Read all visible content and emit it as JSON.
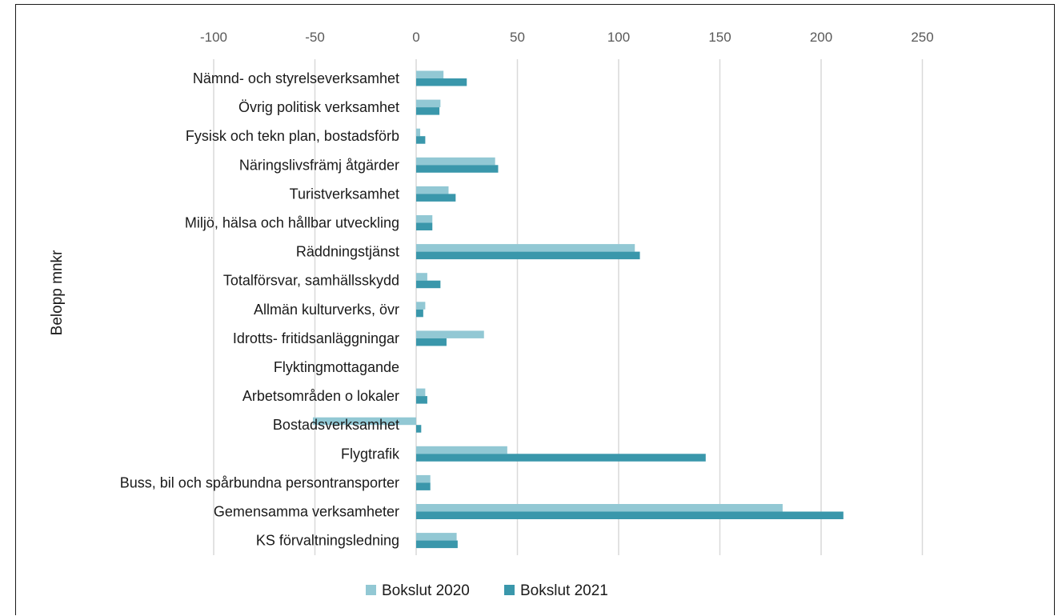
{
  "chart_data": {
    "type": "bar",
    "orientation": "horizontal",
    "title": "",
    "xlabel": "",
    "ylabel": "Belopp mnkr",
    "xlim": [
      -100,
      250
    ],
    "x_ticks": [
      -100,
      -50,
      0,
      50,
      100,
      150,
      200,
      250
    ],
    "x_tick_position": "top",
    "grid": true,
    "legend_position": "bottom",
    "categories": [
      "Nämnd- och styrelseverksamhet",
      "Övrig politisk verksamhet",
      "Fysisk och tekn plan, bostadsförb",
      "Näringslivsfrämj åtgärder",
      "Turistverksamhet",
      "Miljö, hälsa och hållbar utveckling",
      "Räddningstjänst",
      "Totalförsvar, samhällsskydd",
      "Allmän kulturverks, övr",
      "Idrotts- fritidsanläggningar",
      "Flyktingmottagande",
      "Arbetsområden o lokaler",
      "Bostadsverksamhet",
      "Flygtrafik",
      "Buss, bil och spårbundna persontransporter",
      "Gemensamma verksamheter",
      "KS förvaltningsledning"
    ],
    "series": [
      {
        "name": "Bokslut 2020",
        "color": "#92c8d4",
        "values": [
          13.5,
          12,
          2,
          39,
          16,
          8,
          108,
          5.5,
          4.5,
          33.5,
          0,
          4.5,
          -51,
          45,
          7,
          181,
          20
        ]
      },
      {
        "name": "Bokslut 2021",
        "color": "#3a97ab",
        "values": [
          25,
          11.5,
          4.5,
          40.5,
          19.5,
          8,
          110.5,
          12,
          3.5,
          15,
          0,
          5.5,
          2.5,
          143,
          7,
          211,
          20.5
        ]
      }
    ]
  }
}
